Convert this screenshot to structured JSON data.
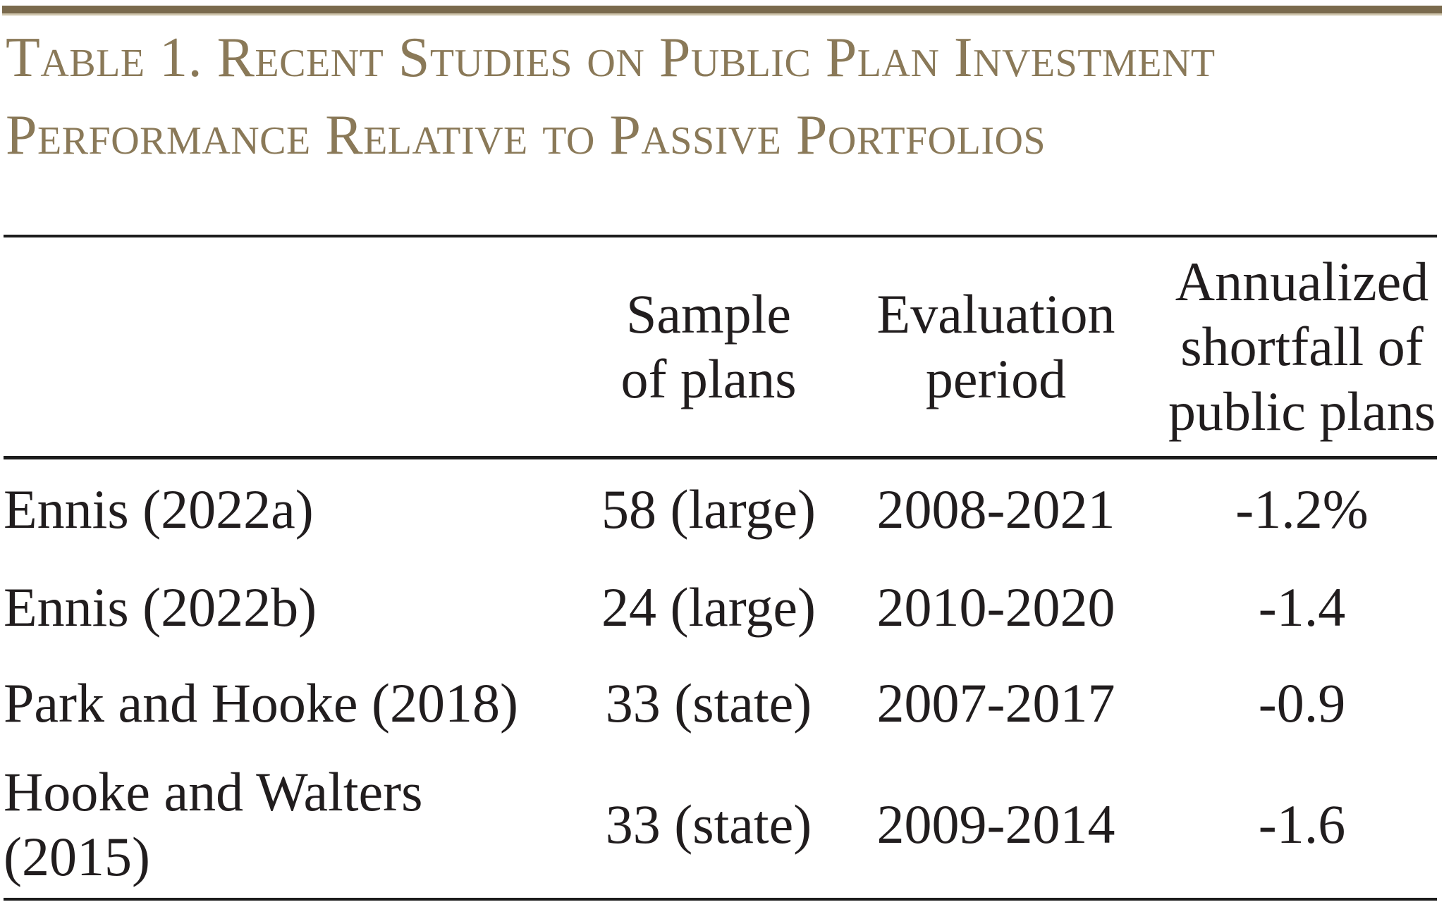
{
  "title": {
    "line1": "Table 1. Recent Studies on Public Plan Investment",
    "line2": "Performance Relative to Passive Portfolios"
  },
  "colors": {
    "accent_bar": "#7a6a4d",
    "accent_bar_light": "#cfc5ac",
    "title_text": "#8a7958",
    "body_text": "#211d1e",
    "rule": "#1c1c1c"
  },
  "table": {
    "columns": [
      {
        "label": "",
        "lines": []
      },
      {
        "label": "Sample of plans",
        "lines": [
          "Sample",
          "of plans"
        ]
      },
      {
        "label": "Evaluation period",
        "lines": [
          "Evaluation",
          "period"
        ]
      },
      {
        "label": "Annualized shortfall of public plans",
        "lines": [
          "Annualized",
          "shortfall of",
          "public plans"
        ]
      }
    ],
    "rows": [
      {
        "study": "Ennis (2022a)",
        "study_lines": [
          "Ennis (2022a)"
        ],
        "sample": "58 (large)",
        "period": "2008-2021",
        "shortfall": "-1.2%"
      },
      {
        "study": "Ennis (2022b)",
        "study_lines": [
          "Ennis (2022b)"
        ],
        "sample": "24 (large)",
        "period": "2010-2020",
        "shortfall": "-1.4"
      },
      {
        "study": "Park and Hooke (2018)",
        "study_lines": [
          "Park and Hooke (2018)"
        ],
        "sample": "33 (state)",
        "period": "2007-2017",
        "shortfall": "-0.9"
      },
      {
        "study": "Hooke and Walters (2015)",
        "study_lines": [
          "Hooke and Walters",
          "(2015)"
        ],
        "sample": "33 (state)",
        "period": "2009-2014",
        "shortfall": "-1.6"
      }
    ]
  }
}
